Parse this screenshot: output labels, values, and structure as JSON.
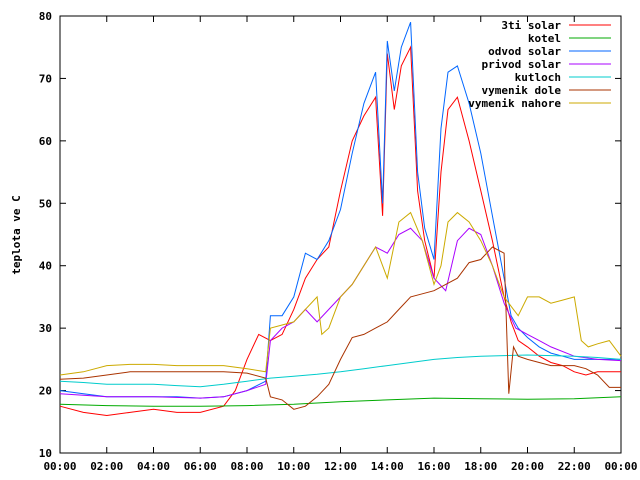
{
  "chart_data": {
    "type": "line",
    "title": "",
    "xlabel": "",
    "ylabel": "teplota ve C",
    "xlim": [
      0,
      24
    ],
    "ylim": [
      10,
      80
    ],
    "y_ticks": [
      10,
      20,
      30,
      40,
      50,
      60,
      70,
      80
    ],
    "x_ticks": [
      0,
      2,
      4,
      6,
      8,
      10,
      12,
      14,
      16,
      18,
      20,
      22,
      24
    ],
    "x_tick_labels": [
      "00:00",
      "02:00",
      "04:00",
      "06:00",
      "08:00",
      "10:00",
      "12:00",
      "14:00",
      "16:00",
      "18:00",
      "20:00",
      "22:00",
      "00:00"
    ],
    "grid": false,
    "legend_position": "top-right",
    "series": [
      {
        "name": "3ti solar",
        "color": "#ff0000",
        "x": [
          0,
          1,
          2,
          3,
          4,
          5,
          6,
          7,
          7.5,
          8,
          8.5,
          9,
          9.5,
          10,
          10.5,
          11,
          11.5,
          12,
          12.5,
          13,
          13.5,
          13.8,
          14,
          14.3,
          14.6,
          15,
          15.3,
          15.6,
          16,
          16.3,
          16.6,
          17,
          17.5,
          18,
          18.5,
          19,
          19.3,
          19.6,
          20,
          20.5,
          21,
          21.5,
          22,
          22.5,
          23,
          23.5,
          24
        ],
        "values": [
          17.5,
          16.5,
          16,
          16.5,
          17,
          16.5,
          16.5,
          17.5,
          20,
          25,
          29,
          28,
          29,
          33,
          38,
          41,
          43,
          52,
          60,
          64,
          67,
          48,
          74,
          65,
          72,
          75,
          52,
          44,
          38,
          55,
          65,
          67,
          60,
          52,
          44,
          35,
          31,
          28,
          27,
          25.5,
          24.5,
          24,
          23,
          22.5,
          23,
          23,
          23
        ]
      },
      {
        "name": "kotel",
        "color": "#00aa00",
        "x": [
          0,
          2,
          4,
          6,
          8,
          10,
          12,
          14,
          16,
          18,
          20,
          22,
          24
        ],
        "values": [
          17.8,
          17.6,
          17.5,
          17.5,
          17.6,
          17.8,
          18.2,
          18.5,
          18.8,
          18.7,
          18.6,
          18.7,
          19
        ]
      },
      {
        "name": "odvod solar",
        "color": "#0066ff",
        "x": [
          0,
          1,
          2,
          3,
          4,
          5,
          6,
          7,
          8,
          8.8,
          9,
          9.5,
          10,
          10.5,
          11,
          11.5,
          12,
          12.5,
          13,
          13.5,
          13.8,
          14,
          14.3,
          14.6,
          15,
          15.3,
          15.6,
          16,
          16.3,
          16.6,
          17,
          17.5,
          18,
          18.5,
          19,
          19.3,
          19.6,
          20,
          20.5,
          21,
          21.5,
          22,
          22.5,
          23,
          23.5,
          24
        ],
        "values": [
          20,
          19.5,
          19,
          19,
          19,
          19,
          18.8,
          19,
          20,
          21.5,
          32,
          32,
          35,
          42,
          41,
          44,
          49,
          58,
          66,
          71,
          50,
          76,
          68,
          75,
          79,
          55,
          46,
          41,
          62,
          71,
          72,
          66,
          58,
          48,
          38,
          32,
          30,
          28.5,
          27,
          26,
          25.5,
          25,
          25,
          25,
          25,
          25
        ]
      },
      {
        "name": "privod solar",
        "color": "#aa00ff",
        "x": [
          0,
          2,
          4,
          6,
          7,
          8,
          8.8,
          9,
          9.5,
          10,
          10.5,
          11,
          11.5,
          12,
          12.5,
          13,
          13.5,
          14,
          14.5,
          15,
          15.5,
          16,
          16.5,
          17,
          17.5,
          18,
          18.5,
          19,
          19.5,
          20,
          20.5,
          21,
          22,
          23,
          24
        ],
        "values": [
          19.5,
          19,
          19,
          18.8,
          19,
          20,
          21,
          28,
          30,
          31,
          33,
          31,
          33,
          35,
          37,
          40,
          43,
          42,
          45,
          46,
          44,
          38,
          36,
          44,
          46,
          45,
          40,
          34,
          30,
          29,
          28,
          27,
          25.5,
          25,
          24.8
        ]
      },
      {
        "name": "kutloch",
        "color": "#00cccc",
        "x": [
          0,
          1,
          2,
          3,
          4,
          5,
          6,
          7,
          8,
          9,
          10,
          11,
          12,
          13,
          14,
          15,
          16,
          17,
          18,
          19,
          20,
          21,
          22,
          23,
          24
        ],
        "values": [
          21.5,
          21.3,
          21,
          21,
          21,
          20.8,
          20.6,
          21,
          21.5,
          22,
          22.3,
          22.6,
          23,
          23.5,
          24,
          24.5,
          25,
          25.3,
          25.5,
          25.6,
          25.7,
          25.6,
          25.5,
          25.3,
          25
        ]
      },
      {
        "name": "vymenik dole",
        "color": "#aa3300",
        "x": [
          0,
          1,
          2,
          3,
          4,
          5,
          6,
          7,
          8,
          8.8,
          9,
          9.5,
          10,
          10.5,
          11,
          11.5,
          12,
          12.5,
          13,
          13.5,
          14,
          14.5,
          15,
          15.5,
          16,
          16.5,
          17,
          17.5,
          18,
          18.5,
          19,
          19.2,
          19.4,
          19.6,
          20,
          20.5,
          21,
          21.5,
          22,
          22.5,
          23,
          23.5,
          24
        ],
        "values": [
          21.8,
          22,
          22.5,
          23,
          23,
          23,
          23,
          23,
          22.8,
          22,
          19,
          18.5,
          17,
          17.5,
          19,
          21,
          25,
          28.5,
          29,
          30,
          31,
          33,
          35,
          35.5,
          36,
          37,
          38,
          40.5,
          41,
          43,
          42,
          19.5,
          27,
          25.5,
          25,
          24.5,
          24,
          24,
          24,
          23.5,
          22.5,
          20.5,
          20.5
        ]
      },
      {
        "name": "vymenik nahore",
        "color": "#ccaa00",
        "x": [
          0,
          1,
          2,
          3,
          4,
          5,
          6,
          7,
          8,
          8.8,
          9,
          9.5,
          10,
          10.5,
          11,
          11.2,
          11.5,
          12,
          12.5,
          13,
          13.5,
          14,
          14.5,
          15,
          15.5,
          16,
          16.3,
          16.6,
          17,
          17.5,
          18,
          18.5,
          19,
          19.3,
          19.6,
          20,
          20.5,
          21,
          21.5,
          22,
          22.3,
          22.6,
          23,
          23.5,
          24
        ],
        "values": [
          22.5,
          23,
          24,
          24.2,
          24.2,
          24,
          24,
          24,
          23.5,
          23,
          30,
          30.5,
          31,
          33,
          35,
          29,
          30,
          35,
          37,
          40,
          43,
          38,
          47,
          48.5,
          44,
          37,
          40,
          47,
          48.5,
          47,
          44,
          40,
          35,
          33.5,
          32,
          35,
          35,
          34,
          34.5,
          35,
          28,
          27,
          27.5,
          28,
          25.5
        ]
      }
    ]
  }
}
